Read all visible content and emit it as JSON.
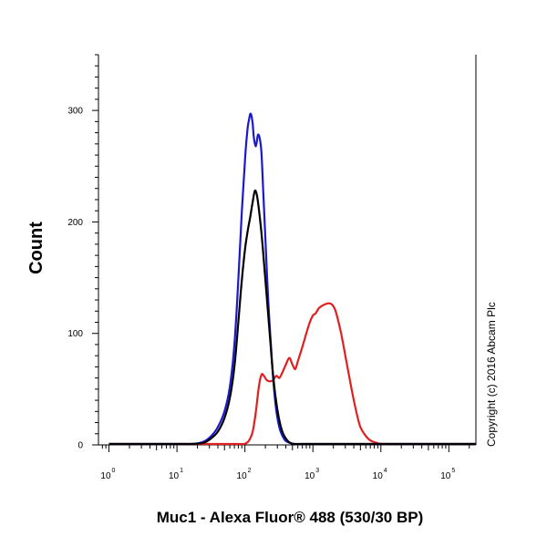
{
  "chart_data": {
    "type": "line",
    "title": "",
    "xlabel": "Muc1 - Alexa Fluor® 488 (530/30 BP)",
    "ylabel": "Count",
    "x_scale": "log",
    "xlim": [
      0.7,
      250000
    ],
    "ylim": [
      0,
      350
    ],
    "x_ticks": [
      {
        "base": "10",
        "exp": "0",
        "value": 1
      },
      {
        "base": "10",
        "exp": "1",
        "value": 10
      },
      {
        "base": "10",
        "exp": "2",
        "value": 100
      },
      {
        "base": "10",
        "exp": "3",
        "value": 1000
      },
      {
        "base": "10",
        "exp": "4",
        "value": 10000
      },
      {
        "base": "10",
        "exp": "5",
        "value": 100000
      }
    ],
    "y_ticks": [
      "0",
      "100",
      "200",
      "300"
    ],
    "y_tick_values": [
      0,
      100,
      200,
      300
    ],
    "grid": false,
    "legend": "none",
    "series": [
      {
        "color": "#1a1acc",
        "x": [
          1,
          10,
          18,
          25,
          32,
          40,
          50,
          60,
          70,
          80,
          90,
          100,
          105,
          110,
          115,
          120,
          125,
          130,
          135,
          145,
          155,
          165,
          175,
          185,
          200,
          220,
          250,
          280,
          320,
          380,
          450,
          550,
          700,
          1000,
          10000,
          250000
        ],
        "y": [
          0,
          0,
          1,
          3,
          8,
          16,
          30,
          52,
          90,
          148,
          210,
          255,
          272,
          285,
          292,
          297,
          295,
          288,
          276,
          268,
          278,
          275,
          262,
          230,
          185,
          130,
          75,
          38,
          16,
          5,
          2,
          0,
          0,
          0,
          0,
          0
        ]
      },
      {
        "color": "#000000",
        "x": [
          1,
          10,
          18,
          25,
          32,
          40,
          50,
          60,
          70,
          80,
          90,
          100,
          110,
          120,
          130,
          140,
          150,
          160,
          175,
          190,
          210,
          235,
          260,
          300,
          350,
          420,
          500,
          600,
          1000,
          10000,
          250000
        ],
        "y": [
          0,
          0,
          1,
          2,
          6,
          12,
          24,
          42,
          70,
          110,
          148,
          175,
          192,
          205,
          218,
          228,
          224,
          212,
          190,
          165,
          132,
          95,
          62,
          32,
          13,
          4,
          1,
          0,
          0,
          0,
          0
        ]
      },
      {
        "color": "#e02020",
        "x": [
          1,
          10,
          50,
          80,
          100,
          115,
          130,
          145,
          160,
          175,
          190,
          210,
          235,
          260,
          290,
          320,
          350,
          400,
          450,
          500,
          550,
          600,
          700,
          800,
          900,
          1000,
          1100,
          1200,
          1300,
          1500,
          1700,
          1900,
          2100,
          2300,
          2600,
          3000,
          3500,
          4000,
          4500,
          5000,
          6000,
          7000,
          8500,
          10000,
          15000,
          250000
        ],
        "y": [
          0,
          0,
          0,
          0,
          1,
          4,
          12,
          30,
          52,
          63,
          62,
          58,
          57,
          58,
          62,
          60,
          64,
          72,
          78,
          72,
          68,
          75,
          88,
          100,
          110,
          116,
          118,
          122,
          124,
          126,
          127,
          126,
          122,
          114,
          100,
          80,
          58,
          40,
          26,
          16,
          8,
          4,
          2,
          1,
          0,
          0
        ]
      }
    ]
  },
  "copyright": "Copyright (c) 2016 Abcam Plc"
}
